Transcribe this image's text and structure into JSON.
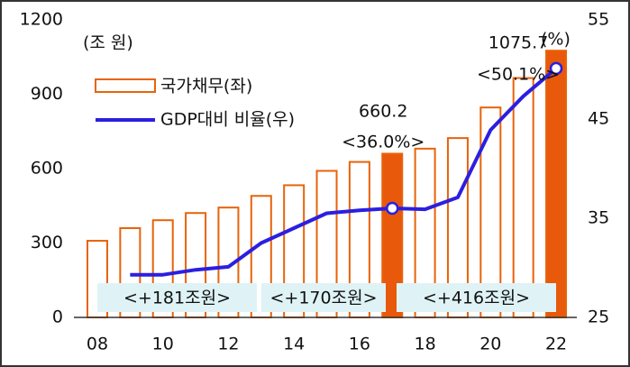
{
  "chart_data": {
    "type": "bar_line",
    "y_unit_label": "(조 원)",
    "y2_unit_label": "(%)",
    "categories": [
      "08",
      null,
      "10",
      null,
      "12",
      null,
      "14",
      null,
      "16",
      null,
      "18",
      null,
      "20",
      null,
      "22"
    ],
    "ylim": [
      0,
      1200
    ],
    "yticks": [
      0,
      300,
      600,
      900,
      1200
    ],
    "y2lim": [
      25,
      55
    ],
    "y2ticks": [
      25,
      35,
      45,
      55
    ],
    "legend": "top-left",
    "series": [
      {
        "name": "국가채무(좌)",
        "type": "bar",
        "color": "#e8630a",
        "colors": [
          "#ffffff",
          "#ffffff",
          "#ffffff",
          "#ffffff",
          "#ffffff",
          "#ffffff",
          "#ffffff",
          "#ffffff",
          "#ffffff",
          "#e8590c",
          "#ffffff",
          "#ffffff",
          "#ffffff",
          "#ffffff",
          "#e8590c"
        ],
        "values": [
          309,
          360,
          392,
          421,
          443,
          490,
          533,
          591,
          627,
          660.2,
          680.5,
          723.2,
          846.6,
          965.3,
          1075.7
        ],
        "value_labels": [
          null,
          null,
          null,
          null,
          null,
          null,
          null,
          null,
          null,
          "660.2",
          null,
          null,
          null,
          null,
          "1075.7"
        ]
      },
      {
        "name": "GDP대비 비율(우)",
        "type": "line",
        "axis": "y2",
        "color": "#2b1fe0",
        "values": [
          null,
          29.3,
          29.3,
          29.8,
          30.1,
          32.5,
          34.0,
          35.5,
          35.8,
          36.0,
          35.9,
          37.1,
          43.9,
          47.3,
          50.1
        ],
        "value_labels": [
          null,
          null,
          null,
          null,
          null,
          null,
          null,
          null,
          null,
          "<36.0%>",
          null,
          null,
          null,
          null,
          "<50.1%>"
        ]
      }
    ],
    "periods": [
      "<+181조원>",
      "<+170조원>",
      "<+416조원>"
    ]
  }
}
